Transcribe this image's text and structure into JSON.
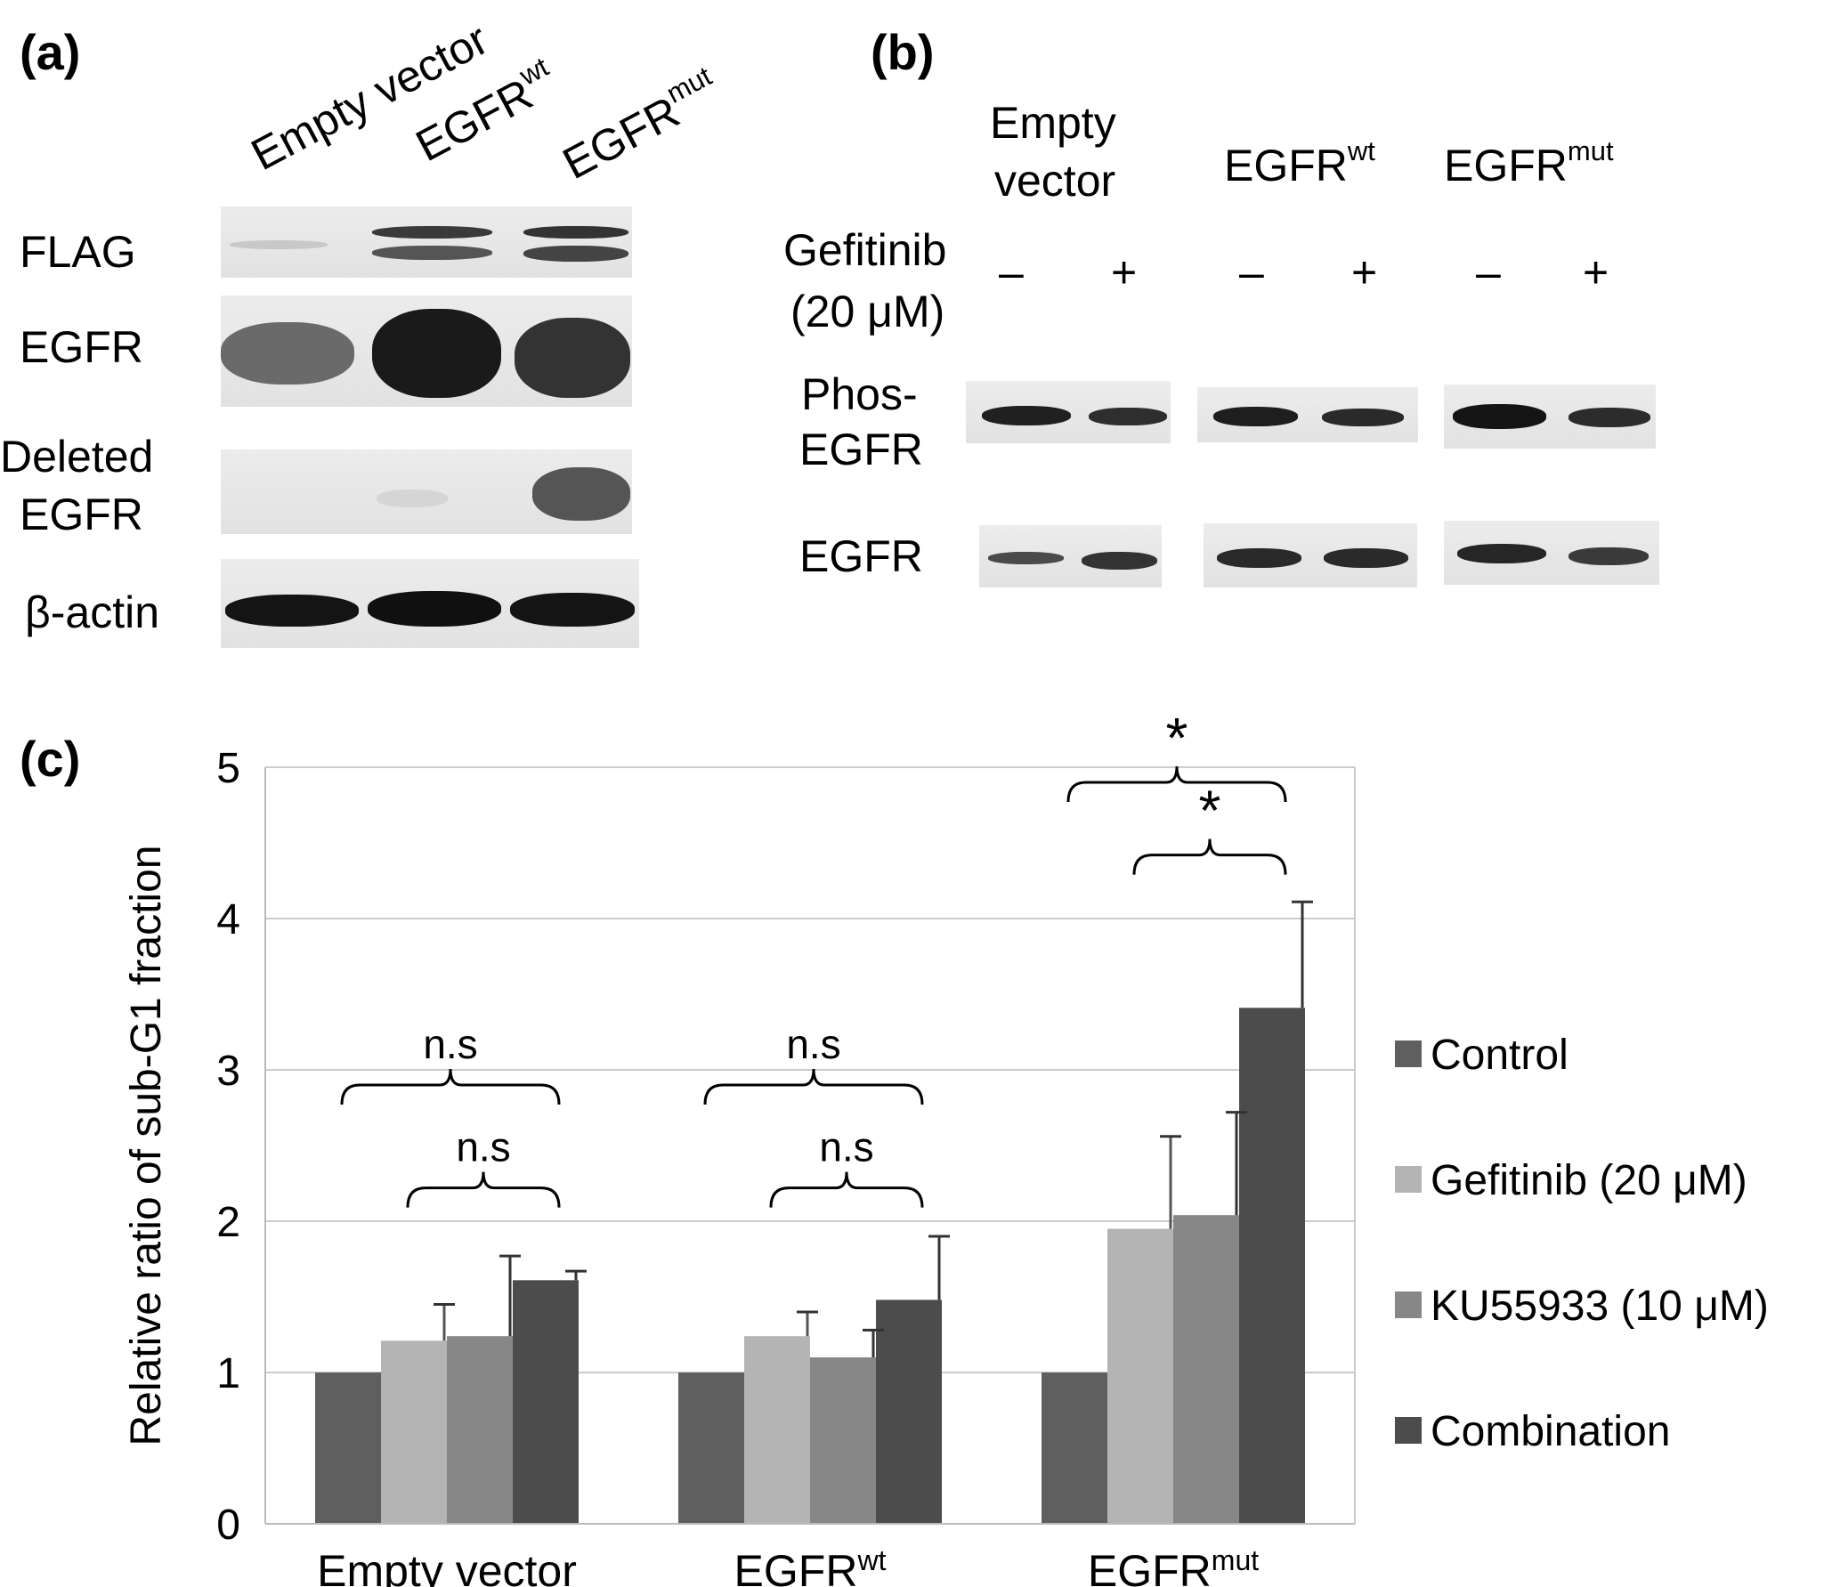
{
  "panels": {
    "a": {
      "label": "(a)",
      "lanes": [
        {
          "base": "Empty vector",
          "sup": ""
        },
        {
          "base": "EGFR",
          "sup": "wt"
        },
        {
          "base": "EGFR",
          "sup": "mut"
        }
      ],
      "rows": [
        "FLAG",
        "EGFR",
        "Deleted",
        "EGFR",
        "β-actin"
      ]
    },
    "b": {
      "label": "(b)",
      "groups": [
        {
          "line1": "Empty",
          "line2": "vector",
          "sup": ""
        },
        {
          "line1": "",
          "line2": "EGFR",
          "sup": "wt"
        },
        {
          "line1": "",
          "line2": "EGFR",
          "sup": "mut"
        }
      ],
      "treatment_line1": "Gefitinib",
      "treatment_line2": "(20 μM)",
      "signs": [
        "–",
        "+",
        "–",
        "+",
        "–",
        "+"
      ],
      "rows": [
        "Phos-",
        "EGFR",
        "EGFR"
      ]
    },
    "c": {
      "label": "(c)"
    }
  },
  "chart_data": {
    "type": "bar",
    "ylabel": "Relative ratio of sub-G1 fraction",
    "xlabel": "",
    "ylim": [
      0,
      5
    ],
    "yticks": [
      "0",
      "1",
      "2",
      "3",
      "4",
      "5"
    ],
    "grid": true,
    "legend_position": "right",
    "categories": [
      {
        "base": "Empty vector",
        "sup": ""
      },
      {
        "base": "EGFR",
        "sup": "wt"
      },
      {
        "base": "EGFR",
        "sup": "mut"
      }
    ],
    "series": [
      {
        "name": "Control",
        "color": "#5f5f5f",
        "values": [
          1.0,
          1.0,
          1.0
        ],
        "errors": [
          0,
          0,
          0
        ]
      },
      {
        "name": "Gefitinib  (20 μM)",
        "color": "#b4b4b4",
        "values": [
          1.21,
          1.24,
          1.95
        ],
        "errors": [
          0.24,
          0.16,
          0.61
        ]
      },
      {
        "name": "KU55933  (10 μM)",
        "color": "#878787",
        "values": [
          1.24,
          1.1,
          2.04
        ],
        "errors": [
          0.53,
          0.18,
          0.68
        ]
      },
      {
        "name": "Combination",
        "color": "#4c4c4c",
        "values": [
          1.61,
          1.48,
          3.41
        ],
        "errors": [
          0.06,
          0.42,
          0.7
        ]
      }
    ],
    "annotations": [
      {
        "text": "n.s",
        "group": 0,
        "from": 0,
        "to": 3,
        "level": 2.9
      },
      {
        "text": "n.s",
        "group": 0,
        "from": 1,
        "to": 3,
        "level": 2.22
      },
      {
        "text": "n.s",
        "group": 1,
        "from": 0,
        "to": 3,
        "level": 2.9
      },
      {
        "text": "n.s",
        "group": 1,
        "from": 1,
        "to": 3,
        "level": 2.22
      },
      {
        "text": "*",
        "group": 2,
        "from": 0,
        "to": 3,
        "level": 4.9
      },
      {
        "text": "*",
        "group": 2,
        "from": 1,
        "to": 3,
        "level": 4.42
      }
    ]
  }
}
